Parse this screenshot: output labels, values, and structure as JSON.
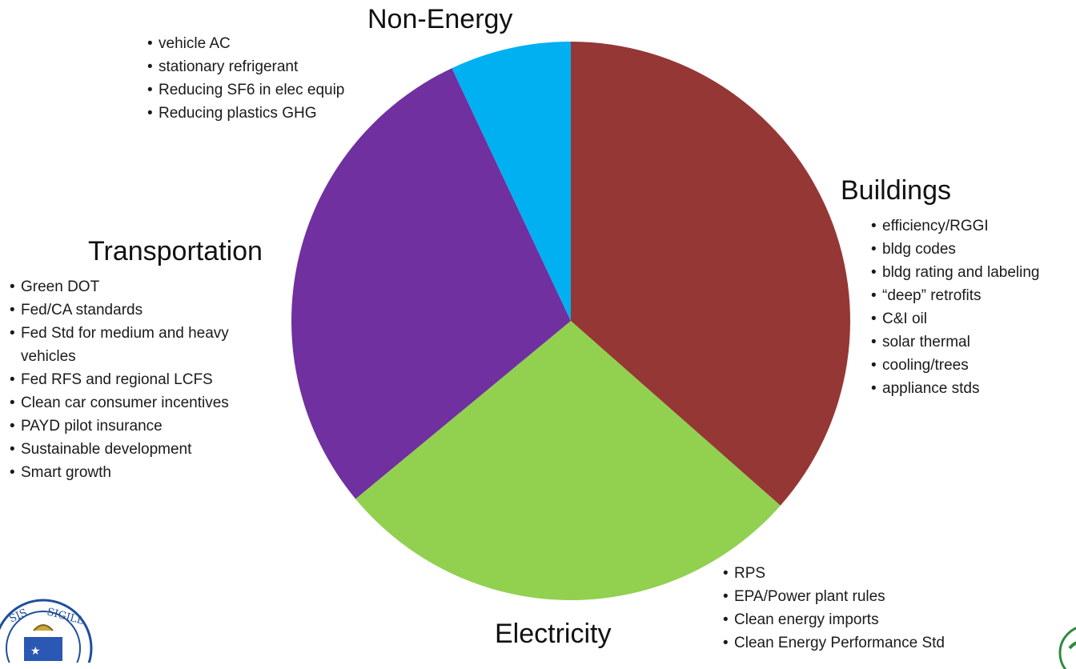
{
  "chart_data": {
    "type": "pie",
    "start_angle_deg": 0,
    "direction": "clockwise",
    "slices": [
      {
        "label": "Buildings",
        "value": 36.5,
        "color": "#953735"
      },
      {
        "label": "Electricity",
        "value": 27.5,
        "color": "#92d050"
      },
      {
        "label": "Transportation",
        "value": 29.0,
        "color": "#7030a0"
      },
      {
        "label": "Non-Energy",
        "value": 7.0,
        "color": "#00b0f0"
      }
    ]
  },
  "groups": {
    "non_energy": {
      "title": "Non-Energy",
      "items": [
        "vehicle AC",
        "stationary refrigerant",
        "Reducing SF6 in elec equip",
        "Reducing plastics GHG"
      ]
    },
    "buildings": {
      "title": "Buildings",
      "items": [
        "efficiency/RGGI",
        "bldg codes",
        "bldg rating and labeling",
        "“deep” retrofits",
        "C&I oil",
        "solar thermal",
        "cooling/trees",
        "appliance stds"
      ]
    },
    "transportation": {
      "title": "Transportation",
      "items": [
        "Green DOT",
        "Fed/CA standards",
        "Fed Std for medium and heavy vehicles",
        "Fed RFS and regional LCFS",
        "Clean car consumer incentives",
        "PAYD pilot insurance",
        "Sustainable development",
        "Smart growth"
      ]
    },
    "electricity": {
      "title": "Electricity",
      "items": [
        "RPS",
        "EPA/Power plant rules",
        "Clean energy imports",
        "Clean Energy Performance Std"
      ]
    }
  }
}
